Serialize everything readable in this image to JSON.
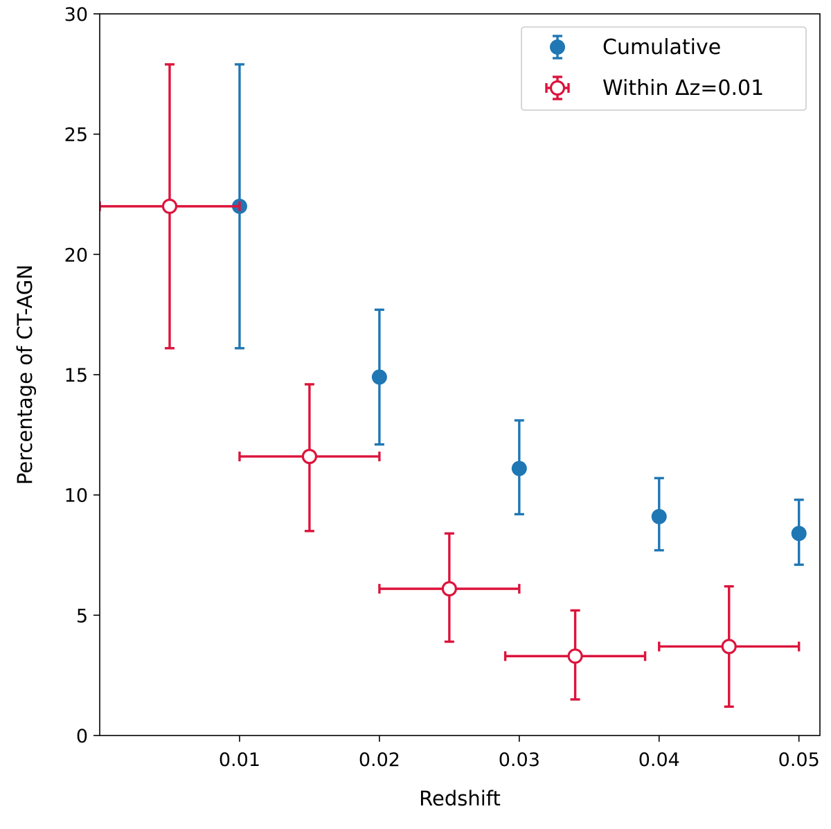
{
  "chart_data": {
    "type": "scatter",
    "title": "",
    "xlabel": "Redshift",
    "ylabel": "Percentage of CT-AGN",
    "xlim": [
      0.0,
      0.0515
    ],
    "ylim": [
      0,
      30
    ],
    "grid": false,
    "legend_position": "top-right",
    "x_ticks": [
      {
        "value": 0.01,
        "label": "0.01"
      },
      {
        "value": 0.02,
        "label": "0.02"
      },
      {
        "value": 0.03,
        "label": "0.03"
      },
      {
        "value": 0.04,
        "label": "0.04"
      },
      {
        "value": 0.05,
        "label": "0.05"
      }
    ],
    "y_ticks": [
      {
        "value": 0,
        "label": "0"
      },
      {
        "value": 5,
        "label": "5"
      },
      {
        "value": 10,
        "label": "10"
      },
      {
        "value": 15,
        "label": "15"
      },
      {
        "value": 20,
        "label": "20"
      },
      {
        "value": 25,
        "label": "25"
      },
      {
        "value": 30,
        "label": "30"
      }
    ],
    "series": [
      {
        "name": "Cumulative",
        "color": "#1f77b4",
        "marker": "filled-circle",
        "points": [
          {
            "x": 0.01,
            "y": 22.0,
            "ylow": 16.1,
            "yhigh": 27.9
          },
          {
            "x": 0.02,
            "y": 14.9,
            "ylow": 12.1,
            "yhigh": 17.7
          },
          {
            "x": 0.03,
            "y": 11.1,
            "ylow": 9.2,
            "yhigh": 13.1
          },
          {
            "x": 0.04,
            "y": 9.1,
            "ylow": 7.7,
            "yhigh": 10.7
          },
          {
            "x": 0.05,
            "y": 8.4,
            "ylow": 7.1,
            "yhigh": 9.8
          }
        ]
      },
      {
        "name": "Within Δz=0.01",
        "color": "#dc143c",
        "marker": "open-circle",
        "points": [
          {
            "x": 0.005,
            "y": 22.0,
            "ylow": 16.1,
            "yhigh": 27.9,
            "xlow": 0.0,
            "xhigh": 0.01
          },
          {
            "x": 0.015,
            "y": 11.6,
            "ylow": 8.5,
            "yhigh": 14.6,
            "xlow": 0.01,
            "xhigh": 0.02
          },
          {
            "x": 0.025,
            "y": 6.1,
            "ylow": 3.9,
            "yhigh": 8.4,
            "xlow": 0.02,
            "xhigh": 0.03
          },
          {
            "x": 0.034,
            "y": 3.3,
            "ylow": 1.5,
            "yhigh": 5.2,
            "xlow": 0.029,
            "xhigh": 0.039
          },
          {
            "x": 0.045,
            "y": 3.7,
            "ylow": 1.2,
            "yhigh": 6.2,
            "xlow": 0.04,
            "xhigh": 0.05
          }
        ]
      }
    ]
  }
}
